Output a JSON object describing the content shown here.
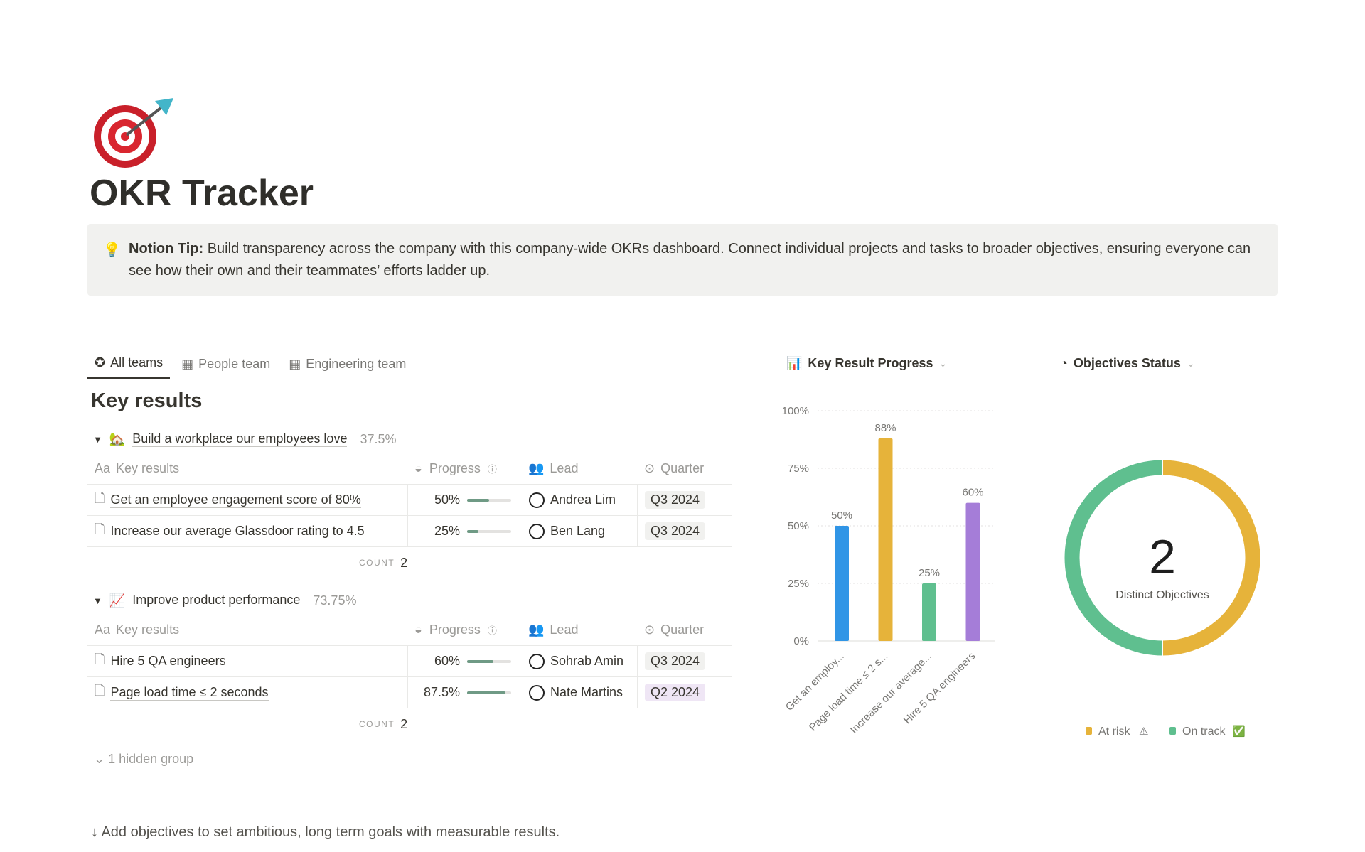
{
  "page": {
    "title": "OKR Tracker",
    "icon": "target-dart-icon"
  },
  "callout": {
    "icon": "lightbulb-icon",
    "bold": "Notion Tip:",
    "text": " Build transparency across the company with this company-wide OKRs dashboard. Connect individual projects and tasks to broader objectives, ensuring everyone can see how their own and their teammates’ efforts ladder up."
  },
  "tabs": [
    {
      "label": "All teams",
      "icon": "star-circle-icon"
    },
    {
      "label": "People team",
      "icon": "table-icon"
    },
    {
      "label": "Engineering team",
      "icon": "table-icon"
    }
  ],
  "key_results": {
    "title": "Key results",
    "columns": {
      "name": "Key results",
      "name_icon": "Aa",
      "progress": "Progress",
      "lead": "Lead",
      "quarter": "Quarter"
    },
    "count_label": "COUNT",
    "groups": [
      {
        "emoji": "🏡",
        "name": "Build a workplace our employees love",
        "pct": "37.5%",
        "count": "2",
        "rows": [
          {
            "name": "Get an employee engagement score of 80%",
            "progress": "50%",
            "progress_value": 0.5,
            "lead": "Andrea Lim",
            "quarter": "Q3 2024"
          },
          {
            "name": "Increase our average Glassdoor rating to 4.5",
            "progress": "25%",
            "progress_value": 0.25,
            "lead": "Ben Lang",
            "quarter": "Q3 2024"
          }
        ]
      },
      {
        "emoji": "📈",
        "name": "Improve product performance",
        "pct": "73.75%",
        "count": "2",
        "rows": [
          {
            "name": "Hire 5 QA engineers",
            "progress": "60%",
            "progress_value": 0.6,
            "lead": "Sohrab Amin",
            "quarter": "Q3 2024"
          },
          {
            "name": "Page load time ≤ 2 seconds",
            "progress": "87.5%",
            "progress_value": 0.875,
            "lead": "Nate Martins",
            "quarter": "Q2 2024"
          }
        ]
      }
    ],
    "hidden_groups": "1 hidden group"
  },
  "footer": "↓ Add objectives to set ambitious, long term goals with measurable results.",
  "chart_data": [
    {
      "type": "bar",
      "title": "Key Result Progress",
      "categories": [
        "Get an employ...",
        "Page load time ≤ 2 s...",
        "Increase our average...",
        "Hire 5 QA engineers"
      ],
      "values": [
        50,
        88,
        25,
        60
      ],
      "labels": [
        "50%",
        "88%",
        "25%",
        "60%"
      ],
      "colors": [
        "#3095e6",
        "#e6b33a",
        "#5fbf8f",
        "#a57dd8"
      ],
      "yticks": [
        "0%",
        "25%",
        "50%",
        "75%",
        "100%"
      ],
      "ylim": [
        0,
        100
      ],
      "grid": true
    },
    {
      "type": "pie",
      "title": "Objectives Status",
      "center_value": "2",
      "center_label": "Distinct Objectives",
      "slices": [
        {
          "name": "At risk",
          "icon": "⚠",
          "value": 1,
          "color": "#e6b33a"
        },
        {
          "name": "On track",
          "icon": "✅",
          "value": 1,
          "color": "#5fbf8f"
        }
      ],
      "legend": "bottom"
    }
  ]
}
